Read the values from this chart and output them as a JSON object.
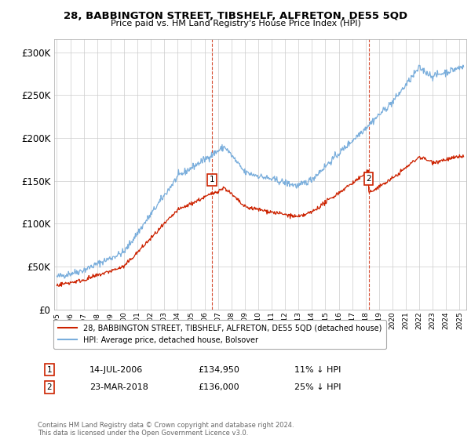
{
  "title": "28, BABBINGTON STREET, TIBSHELF, ALFRETON, DE55 5QD",
  "subtitle": "Price paid vs. HM Land Registry's House Price Index (HPI)",
  "ylabel_ticks": [
    "£0",
    "£50K",
    "£100K",
    "£150K",
    "£200K",
    "£250K",
    "£300K"
  ],
  "ytick_values": [
    0,
    50000,
    100000,
    150000,
    200000,
    250000,
    300000
  ],
  "ylim": [
    0,
    315000
  ],
  "xlim_start": 1994.8,
  "xlim_end": 2025.5,
  "hpi_color": "#7aaedc",
  "price_color": "#cc2200",
  "marker1_x": 2006.54,
  "marker1_y": 134950,
  "marker1_label": "1",
  "marker1_date": "14-JUL-2006",
  "marker1_price": "£134,950",
  "marker1_hpi": "11% ↓ HPI",
  "marker2_x": 2018.22,
  "marker2_y": 136000,
  "marker2_label": "2",
  "marker2_date": "23-MAR-2018",
  "marker2_price": "£136,000",
  "marker2_hpi": "25% ↓ HPI",
  "legend_line1": "28, BABBINGTON STREET, TIBSHELF, ALFRETON, DE55 5QD (detached house)",
  "legend_line2": "HPI: Average price, detached house, Bolsover",
  "footnote": "Contains HM Land Registry data © Crown copyright and database right 2024.\nThis data is licensed under the Open Government Licence v3.0.",
  "background_color": "#ffffff",
  "grid_color": "#cccccc"
}
